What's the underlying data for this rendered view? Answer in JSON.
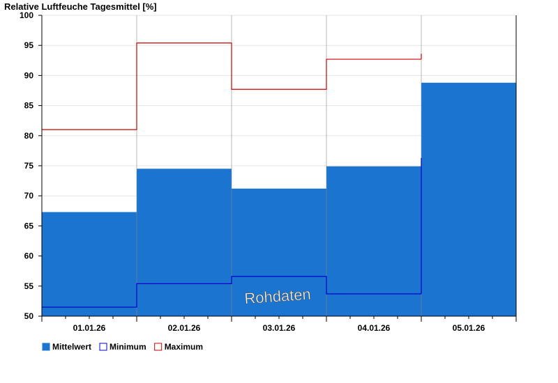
{
  "chart_data": {
    "type": "bar",
    "title": "Relative Luftfeuche Tagesmittel [%]",
    "xlabel": "",
    "ylabel": "",
    "ylim": [
      50,
      100
    ],
    "yticks": [
      50,
      55,
      60,
      65,
      70,
      75,
      80,
      85,
      90,
      95,
      100
    ],
    "categories": [
      "01.01.26",
      "02.01.26",
      "03.01.26",
      "04.01.26",
      "05.01.26"
    ],
    "series": [
      {
        "name": "Mittelwert",
        "kind": "bar",
        "values": [
          67.3,
          74.5,
          71.2,
          74.9,
          88.8
        ]
      },
      {
        "name": "Minimum",
        "kind": "step",
        "values": [
          51.5,
          55.4,
          56.6,
          53.7,
          null
        ]
      },
      {
        "name": "Maximum",
        "kind": "step",
        "values": [
          81.0,
          95.4,
          87.7,
          92.7,
          null
        ]
      }
    ],
    "grid": true,
    "legend_position": "bottom-left",
    "annotation": "Rohdaten",
    "colors": {
      "bar": "#1b75d0",
      "minimum": "#0000cc",
      "maximum": "#cc0000",
      "grid": "#e6e6e6",
      "separator": "#888888"
    }
  }
}
